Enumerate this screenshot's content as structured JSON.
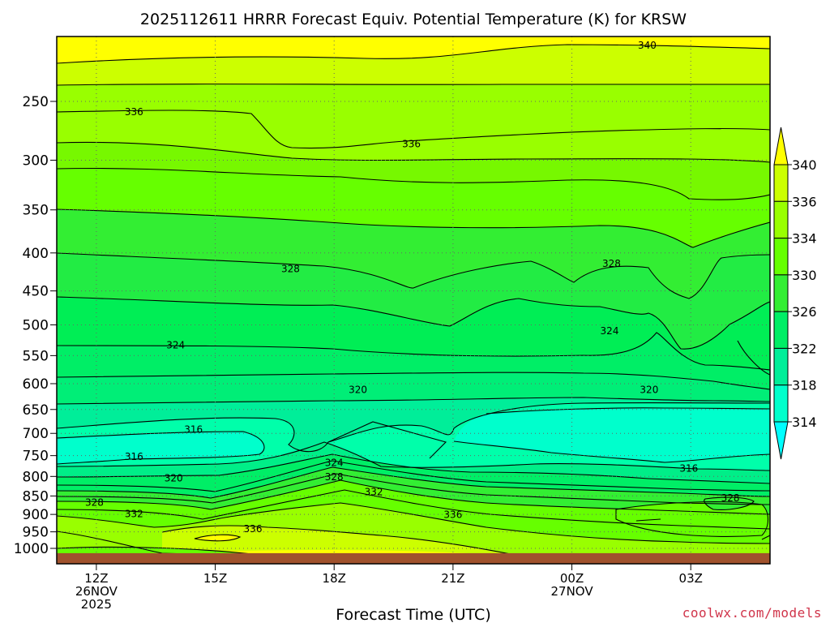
{
  "chart_data": {
    "type": "heatmap",
    "title": "2025112611 HRRR Forecast Equiv. Potential Temperature (K) for KRSW",
    "xlabel": "Forecast Time (UTC)",
    "credit": "coolwx.com/models",
    "y_ticks": [
      250,
      300,
      350,
      400,
      450,
      500,
      550,
      600,
      650,
      700,
      750,
      800,
      850,
      900,
      950,
      1000
    ],
    "x_ticks": [
      {
        "hour": 12,
        "lines": [
          "12Z",
          "26NOV",
          "2025"
        ]
      },
      {
        "hour": 15,
        "lines": [
          "15Z"
        ]
      },
      {
        "hour": 18,
        "lines": [
          "18Z"
        ]
      },
      {
        "hour": 21,
        "lines": [
          "21Z"
        ]
      },
      {
        "hour": 24,
        "lines": [
          "00Z",
          "27NOV"
        ]
      },
      {
        "hour": 27,
        "lines": [
          "03Z"
        ]
      }
    ],
    "x_range_hours": [
      11,
      29
    ],
    "y_range_hpa": [
      1020,
      200
    ],
    "ground_hpa": 1015,
    "ground_color": "#a0522d",
    "grid": true,
    "colorbar": {
      "ticks": [
        340,
        336,
        334,
        330,
        326,
        322,
        318,
        314
      ],
      "colors": [
        "#ffff00",
        "#ccff00",
        "#99ff00",
        "#66ff00",
        "#33ee33",
        "#00ee66",
        "#00ee99",
        "#00ffcc",
        "#00ffff"
      ]
    },
    "contour_labels": [
      {
        "text": "340",
        "hour": 25.9,
        "p": 210
      },
      {
        "text": "336",
        "hour": 12.95,
        "p": 258
      },
      {
        "text": "336",
        "hour": 19.95,
        "p": 285
      },
      {
        "text": "328",
        "hour": 16.9,
        "p": 420
      },
      {
        "text": "328",
        "hour": 25.0,
        "p": 413
      },
      {
        "text": "324",
        "hour": 14.0,
        "p": 532
      },
      {
        "text": "324",
        "hour": 24.95,
        "p": 509
      },
      {
        "text": "320",
        "hour": 18.6,
        "p": 611
      },
      {
        "text": "320",
        "hour": 25.95,
        "p": 611
      },
      {
        "text": "316",
        "hour": 14.45,
        "p": 691
      },
      {
        "text": "316",
        "hour": 12.95,
        "p": 752
      },
      {
        "text": "316",
        "hour": 26.95,
        "p": 780
      },
      {
        "text": "320",
        "hour": 13.95,
        "p": 803
      },
      {
        "text": "324",
        "hour": 18.0,
        "p": 766
      },
      {
        "text": "328",
        "hour": 18.0,
        "p": 800
      },
      {
        "text": "332",
        "hour": 19.0,
        "p": 838
      },
      {
        "text": "328",
        "hour": 11.95,
        "p": 866
      },
      {
        "text": "332",
        "hour": 12.95,
        "p": 897
      },
      {
        "text": "336",
        "hour": 15.95,
        "p": 940
      },
      {
        "text": "336",
        "hour": 21.0,
        "p": 900
      },
      {
        "text": "328",
        "hour": 28.0,
        "p": 854
      }
    ]
  }
}
